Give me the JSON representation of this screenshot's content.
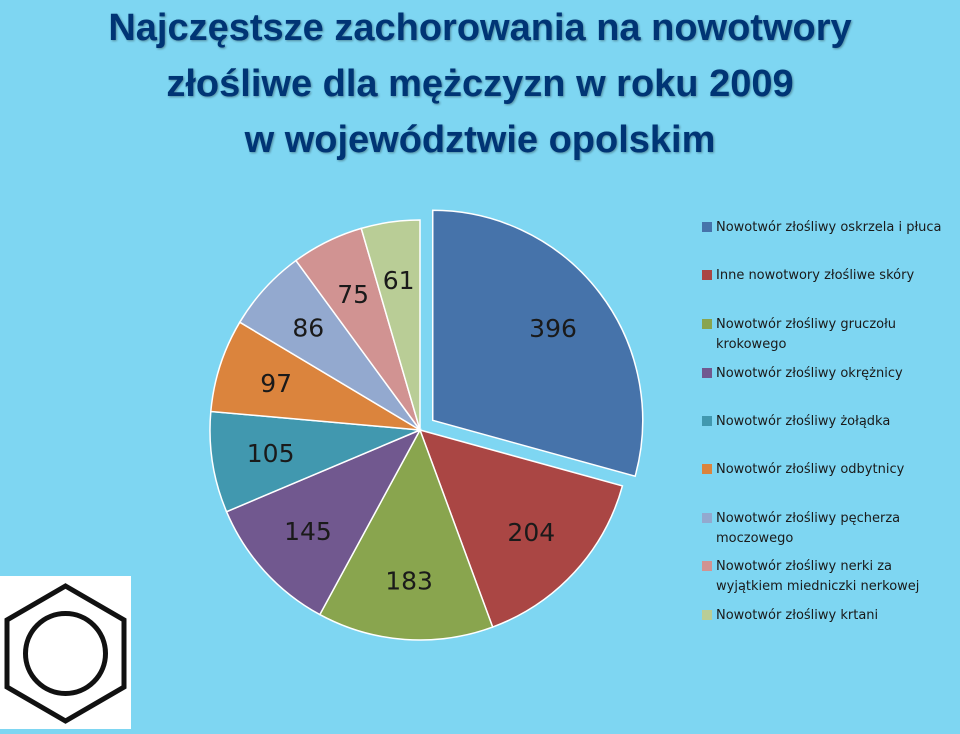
{
  "title_lines": [
    "Najczęstsze zachorowania na nowotwory",
    "złośliwe  dla mężczyzn  w roku 2009",
    "w województwie opolskim"
  ],
  "chart_data": {
    "type": "pie",
    "title": "Najczęstsze zachorowania na nowotwory złośliwe dla mężczyzn w roku 2009 w województwie opolskim",
    "legend_position": "right",
    "slices": [
      {
        "label": "Nowotwór złośliwy oskrzela i płuca",
        "value": 396,
        "color": "#4673aa",
        "exploded": true
      },
      {
        "label": "Inne nowotwory złośliwe skóry",
        "value": 204,
        "color": "#aa4644"
      },
      {
        "label": "Nowotwór złośliwy gruczołu krokowego",
        "value": 183,
        "color": "#89a54e"
      },
      {
        "label": "Nowotwór złośliwy okrężnicy",
        "value": 145,
        "color": "#71588f"
      },
      {
        "label": "Nowotwór złośliwy żołądka",
        "value": 105,
        "color": "#4198af"
      },
      {
        "label": "Nowotwór złośliwy odbytnicy",
        "value": 97,
        "color": "#db843d"
      },
      {
        "label": "Nowotwór złośliwy pęcherza moczowego",
        "value": 86,
        "color": "#93a9cf"
      },
      {
        "label": "Nowotwór złośliwy nerki za wyjątkiem miedniczki nerkowej",
        "value": 75,
        "color": "#d19392"
      },
      {
        "label": "Nowotwór złośliwy krtani",
        "value": 61,
        "color": "#b9cd96"
      }
    ]
  },
  "decoration": {
    "icon": "benzene-ring-icon"
  }
}
